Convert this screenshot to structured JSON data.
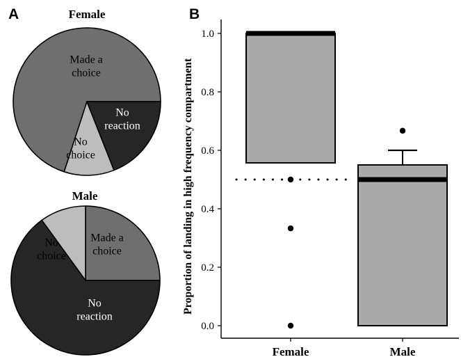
{
  "panels": {
    "a_label": "A",
    "b_label": "B"
  },
  "chart_data": [
    {
      "type": "pie",
      "title": "Female",
      "slices": [
        {
          "label": "Made a choice",
          "value": 0.7,
          "color": "#6f6f6f",
          "text_color": "#000000"
        },
        {
          "label": "No choice",
          "value": 0.11,
          "color": "#bdbdbd",
          "text_color": "#000000"
        },
        {
          "label": "No reaction",
          "value": 0.19,
          "color": "#262626",
          "text_color": "#ffffff"
        }
      ]
    },
    {
      "type": "pie",
      "title": "Male",
      "slices": [
        {
          "label": "Made a choice",
          "value": 0.25,
          "color": "#6f6f6f",
          "text_color": "#000000"
        },
        {
          "label": "No choice",
          "value": 0.1,
          "color": "#bdbdbd",
          "text_color": "#000000"
        },
        {
          "label": "No reaction",
          "value": 0.65,
          "color": "#262626",
          "text_color": "#ffffff"
        }
      ]
    },
    {
      "type": "boxplot",
      "ylabel": "Proportion of landing in high frequency compartment",
      "xlabel": "",
      "ylim": [
        0,
        1
      ],
      "yticks": [
        "0.0",
        "0.2",
        "0.4",
        "0.6",
        "0.8",
        "1.0"
      ],
      "reference_line": 0.5,
      "box_color": "#aaaaaa",
      "categories": [
        "Female",
        "Male"
      ],
      "boxes": [
        {
          "q1": 0.557,
          "median": 1.0,
          "q3": 1.0,
          "whisker_low": null,
          "whisker_high": null,
          "outliers": [
            0.5,
            0.333,
            0.0
          ]
        },
        {
          "q1": 0.0,
          "median": 0.5,
          "q3": 0.55,
          "whisker_low": null,
          "whisker_high": 0.6,
          "outliers": [
            0.667
          ]
        }
      ]
    }
  ]
}
